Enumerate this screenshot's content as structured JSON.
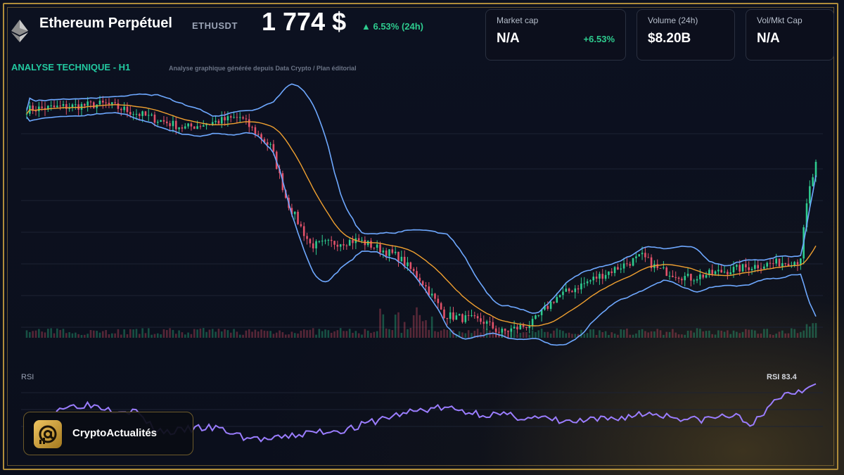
{
  "header": {
    "pair_name": "Ethereum Perpétuel",
    "pair_symbol": "ETHUSDT",
    "price": "1 774 $",
    "change_24h": "▲ 6.53% (24h)"
  },
  "cards": [
    {
      "label": "Market cap",
      "value": "N/A",
      "sub": "+6.53%"
    },
    {
      "label": "Volume (24h)",
      "value": "$8.20B"
    },
    {
      "label": "Vol/Mkt Cap",
      "value": "N/A"
    }
  ],
  "analysis": {
    "title": "ANALYSE TECHNIQUE - H1",
    "subtitle": "Analyse graphique générée depuis Data Crypto / Plan éditorial"
  },
  "rsi": {
    "label": "RSI",
    "value_label": "RSI 83.4"
  },
  "brand": {
    "name": "CryptoActualités"
  },
  "colors": {
    "up": "#2ecc8f",
    "down": "#e2526a",
    "bollinger": "#6ea8ff",
    "moving_average": "#f0a030",
    "rsi": "#9b7dff",
    "accent": "#22c9a0",
    "gold": "#b08d3a"
  },
  "chart_data": [
    {
      "type": "candlestick",
      "title": "",
      "price_path_approx": [
        [
          0,
          1825
        ],
        [
          10,
          1830
        ],
        [
          20,
          1808
        ],
        [
          27,
          1818
        ],
        [
          31,
          1790
        ],
        [
          33,
          1740
        ],
        [
          36,
          1700
        ],
        [
          42,
          1705
        ],
        [
          47,
          1690
        ],
        [
          50,
          1668
        ],
        [
          53,
          1636
        ],
        [
          58,
          1630
        ],
        [
          60,
          1620
        ],
        [
          64,
          1628
        ],
        [
          67,
          1652
        ],
        [
          72,
          1670
        ],
        [
          78,
          1690
        ],
        [
          80,
          1678
        ],
        [
          84,
          1670
        ],
        [
          88,
          1676
        ],
        [
          92,
          1681
        ],
        [
          95,
          1684
        ],
        [
          98,
          1686
        ],
        [
          99,
          1746
        ],
        [
          100,
          1774
        ]
      ],
      "overlays": [
        "Bollinger bands",
        "moving average"
      ],
      "volume_bars": true
    },
    {
      "type": "line",
      "title": "RSI",
      "series": [
        {
          "values": [
            62,
            63,
            65,
            64,
            61,
            60,
            58,
            45,
            40,
            41,
            43,
            44,
            43,
            39,
            35,
            34,
            33,
            36,
            38,
            40,
            41,
            42,
            44,
            48,
            52,
            55,
            58,
            60,
            62,
            61,
            59,
            57,
            56,
            55,
            54,
            53,
            52,
            50,
            49,
            50,
            51,
            52,
            54,
            56,
            57,
            55,
            53,
            51,
            52,
            54,
            55,
            48,
            52,
            70,
            75,
            78,
            83.4
          ]
        }
      ]
    }
  ]
}
